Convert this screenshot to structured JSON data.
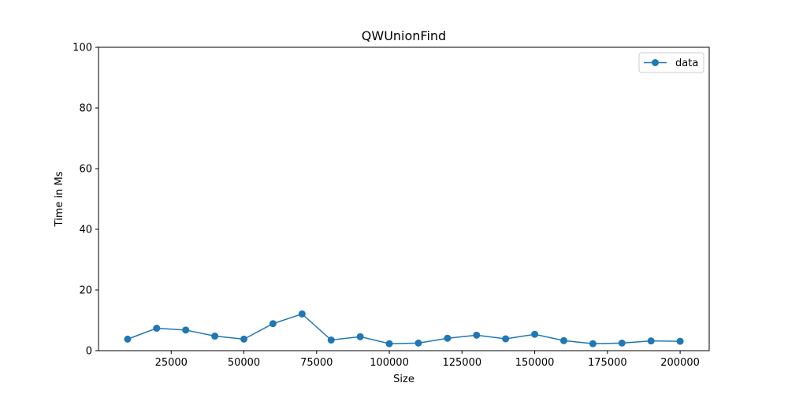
{
  "chart_data": {
    "type": "line",
    "title": "QWUnionFind",
    "xlabel": "Size",
    "ylabel": "Time in Ms",
    "xlim": [
      0,
      210000
    ],
    "ylim": [
      0,
      100
    ],
    "xticks": [
      25000,
      50000,
      75000,
      100000,
      125000,
      150000,
      175000,
      200000
    ],
    "yticks": [
      0,
      20,
      40,
      60,
      80,
      100
    ],
    "grid": false,
    "legend_position": "upper right",
    "color": "#1f77b4",
    "series": [
      {
        "name": "data",
        "x": [
          10000,
          20000,
          30000,
          40000,
          50000,
          60000,
          70000,
          80000,
          90000,
          100000,
          110000,
          120000,
          130000,
          140000,
          150000,
          160000,
          170000,
          180000,
          190000,
          200000
        ],
        "y": [
          3.8,
          7.4,
          6.8,
          4.8,
          3.8,
          8.9,
          12.1,
          3.5,
          4.6,
          2.3,
          2.5,
          4.1,
          5.1,
          3.9,
          5.4,
          3.3,
          2.3,
          2.5,
          3.2,
          3.1
        ]
      }
    ]
  }
}
